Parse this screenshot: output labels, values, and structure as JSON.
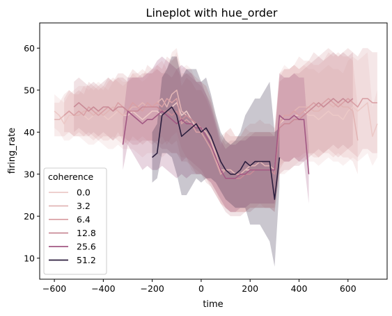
{
  "chart_data": {
    "type": "line",
    "title": "Lineplot with hue_order",
    "xlabel": "time",
    "ylabel": "firing_rate",
    "xlim": [
      -660,
      760
    ],
    "ylim": [
      5,
      66
    ],
    "xticks": [
      -600,
      -400,
      -200,
      0,
      200,
      400,
      600
    ],
    "yticks": [
      10,
      20,
      30,
      40,
      50,
      60
    ],
    "grid": false,
    "legend": {
      "title": "coherence",
      "placement": "lower-left"
    },
    "series": [
      {
        "name": "0.0",
        "color": "#ecc9c7",
        "x": [
          -600,
          -580,
          -560,
          -540,
          -520,
          -500,
          -480,
          -460,
          -440,
          -420,
          -400,
          -380,
          -360,
          -340,
          -320,
          -300,
          -280,
          -260,
          -240,
          -220,
          -200,
          -180,
          -160,
          -140,
          -120,
          -100,
          -80,
          -60,
          -40,
          -20,
          0,
          20,
          40,
          60,
          80,
          100,
          120,
          140,
          160,
          180,
          200,
          220,
          240,
          260,
          280,
          300,
          320,
          340,
          360,
          380,
          400,
          420,
          440,
          460,
          480,
          500,
          520,
          540,
          560,
          580,
          600,
          620,
          640,
          660,
          680,
          700,
          720
        ],
        "y": [
          45,
          44,
          42,
          44,
          44,
          45,
          44,
          43,
          44,
          45,
          44,
          43,
          44,
          45,
          44,
          44,
          45,
          44,
          43,
          44,
          45,
          45,
          44,
          45,
          46,
          47,
          44,
          45,
          43,
          41,
          41,
          40,
          38,
          34,
          30,
          31,
          31,
          30,
          30,
          31,
          31,
          31,
          31,
          31,
          31,
          31,
          42,
          43,
          43,
          44,
          44,
          45,
          44,
          44,
          43,
          44,
          45,
          44,
          44,
          43,
          45,
          46,
          45,
          46,
          47,
          39,
          42
        ],
        "lo": [
          41,
          40,
          38,
          38,
          39,
          39,
          38,
          37,
          37,
          38,
          37,
          36,
          36,
          37,
          36,
          36,
          36,
          35,
          34,
          35,
          35,
          35,
          34,
          35,
          35,
          35,
          34,
          34,
          31,
          30,
          30,
          29,
          28,
          26,
          24,
          22,
          21,
          21,
          21,
          21,
          22,
          22,
          22,
          22,
          22,
          22,
          30,
          30,
          31,
          32,
          33,
          34,
          33,
          33,
          32,
          33,
          34,
          33,
          33,
          32,
          33,
          34,
          33,
          34,
          35,
          32,
          34
        ],
        "hi": [
          49,
          48,
          47,
          49,
          50,
          51,
          51,
          50,
          51,
          52,
          51,
          50,
          52,
          53,
          52,
          52,
          54,
          53,
          52,
          53,
          55,
          55,
          54,
          55,
          57,
          59,
          55,
          56,
          55,
          52,
          52,
          51,
          48,
          42,
          36,
          40,
          41,
          39,
          39,
          41,
          40,
          40,
          40,
          40,
          40,
          40,
          54,
          56,
          55,
          56,
          55,
          56,
          55,
          55,
          54,
          55,
          56,
          55,
          55,
          54,
          57,
          58,
          57,
          58,
          59,
          46,
          50
        ]
      },
      {
        "name": "3.2",
        "color": "#e2b5b5",
        "x": [
          -600,
          -580,
          -560,
          -540,
          -520,
          -500,
          -480,
          -460,
          -440,
          -420,
          -400,
          -380,
          -360,
          -340,
          -320,
          -300,
          -280,
          -260,
          -240,
          -220,
          -200,
          -180,
          -160,
          -140,
          -120,
          -100,
          -80,
          -60,
          -40,
          -20,
          0,
          20,
          40,
          60,
          80,
          100,
          120,
          140,
          160,
          180,
          200,
          220,
          240,
          260,
          280,
          300,
          320,
          340,
          360,
          380,
          400,
          420,
          440,
          460,
          480,
          500,
          520,
          540,
          560,
          580,
          600,
          620,
          640
        ],
        "y": [
          43,
          43,
          44,
          45,
          44,
          44,
          45,
          45,
          44,
          45,
          44,
          45,
          46,
          45,
          44,
          45,
          46,
          46,
          47,
          46,
          46,
          47,
          48,
          46,
          49,
          50,
          45,
          44,
          43,
          42,
          41,
          40,
          38,
          35,
          31,
          31,
          31,
          30,
          30,
          31,
          32,
          32,
          33,
          32,
          32,
          31,
          43,
          44,
          44,
          45,
          46,
          46,
          46,
          45,
          45,
          46,
          47,
          46,
          47,
          46,
          46,
          45,
          38
        ],
        "lo": [
          39,
          39,
          39,
          40,
          39,
          39,
          39,
          39,
          38,
          39,
          38,
          38,
          39,
          38,
          37,
          38,
          38,
          38,
          39,
          38,
          38,
          38,
          39,
          37,
          39,
          40,
          36,
          34,
          32,
          31,
          30,
          29,
          28,
          26,
          23,
          22,
          21,
          21,
          21,
          21,
          22,
          22,
          23,
          22,
          22,
          21,
          32,
          33,
          33,
          34,
          34,
          35,
          35,
          34,
          34,
          35,
          35,
          34,
          35,
          34,
          34,
          33,
          30
        ],
        "hi": [
          47,
          47,
          49,
          50,
          49,
          49,
          51,
          51,
          50,
          51,
          50,
          52,
          53,
          52,
          51,
          52,
          54,
          54,
          55,
          54,
          54,
          56,
          57,
          55,
          59,
          60,
          54,
          54,
          54,
          53,
          52,
          51,
          48,
          44,
          39,
          40,
          41,
          39,
          39,
          41,
          42,
          42,
          43,
          42,
          42,
          41,
          54,
          55,
          55,
          56,
          58,
          57,
          57,
          56,
          56,
          57,
          59,
          58,
          59,
          58,
          58,
          57,
          46
        ]
      },
      {
        "name": "6.4",
        "color": "#d9a0a5",
        "x": [
          -560,
          -540,
          -520,
          -500,
          -480,
          -460,
          -440,
          -420,
          -400,
          -380,
          -360,
          -340,
          -320,
          -300,
          -280,
          -260,
          -240,
          -220,
          -200,
          -180,
          -160,
          -140,
          -120,
          -100,
          -80,
          -60,
          -40,
          -20,
          0,
          20,
          40,
          60,
          80,
          100,
          120,
          140,
          160,
          180,
          200,
          220,
          240,
          260,
          280,
          300,
          320,
          340,
          360,
          380,
          400,
          420,
          440,
          460,
          480,
          500,
          520,
          540,
          560,
          580,
          600,
          620,
          640,
          660,
          680,
          700,
          720
        ],
        "y": [
          44,
          45,
          44,
          45,
          44,
          46,
          45,
          44,
          45,
          46,
          45,
          47,
          46,
          45,
          47,
          46,
          45,
          47,
          46,
          47,
          46,
          48,
          47,
          48,
          42,
          43,
          42,
          40,
          40,
          38,
          36,
          33,
          30,
          31,
          30,
          30,
          30,
          30,
          31,
          31,
          31,
          31,
          31,
          31,
          42,
          44,
          44,
          45,
          44,
          45,
          46,
          47,
          46,
          47,
          48,
          47,
          46,
          47,
          48,
          47,
          46,
          48,
          48,
          47,
          47
        ],
        "lo": [
          40,
          40,
          39,
          40,
          39,
          40,
          39,
          38,
          39,
          39,
          38,
          40,
          38,
          37,
          39,
          38,
          37,
          38,
          37,
          38,
          37,
          38,
          37,
          38,
          33,
          33,
          32,
          30,
          30,
          28,
          27,
          25,
          23,
          22,
          21,
          21,
          21,
          21,
          22,
          22,
          22,
          22,
          22,
          22,
          31,
          33,
          33,
          34,
          33,
          34,
          35,
          35,
          34,
          35,
          36,
          35,
          34,
          35,
          36,
          35,
          34,
          36,
          36,
          35,
          35
        ],
        "hi": [
          48,
          50,
          49,
          50,
          49,
          52,
          51,
          50,
          51,
          53,
          52,
          54,
          54,
          53,
          55,
          54,
          53,
          56,
          55,
          56,
          55,
          58,
          57,
          58,
          51,
          53,
          52,
          50,
          50,
          48,
          45,
          41,
          37,
          40,
          39,
          39,
          39,
          39,
          40,
          40,
          40,
          40,
          40,
          40,
          53,
          55,
          55,
          56,
          55,
          56,
          57,
          59,
          58,
          59,
          60,
          59,
          58,
          59,
          60,
          59,
          58,
          60,
          60,
          59,
          59
        ]
      },
      {
        "name": "12.8",
        "color": "#c98a96",
        "x": [
          -520,
          -500,
          -480,
          -460,
          -440,
          -420,
          -400,
          -380,
          -360,
          -340,
          -320,
          -300,
          -280,
          -260,
          -240,
          -220,
          -200,
          -180,
          -160,
          -140,
          -120,
          -100,
          -80,
          -60,
          -40,
          -20,
          0,
          20,
          40,
          60,
          80,
          100,
          120,
          140,
          160,
          180,
          200,
          220,
          240,
          260,
          280,
          300,
          320,
          340,
          360,
          380,
          400,
          420,
          440,
          460,
          480,
          500,
          520,
          540,
          560,
          580,
          600,
          620
        ],
        "y": [
          46,
          47,
          46,
          45,
          46,
          45,
          46,
          46,
          45,
          46,
          46,
          45,
          45,
          45,
          46,
          46,
          46,
          46,
          45,
          45,
          44,
          45,
          43,
          44,
          43,
          42,
          41,
          39,
          37,
          34,
          31,
          29,
          29,
          29,
          29,
          30,
          30,
          31,
          31,
          31,
          31,
          30,
          41,
          42,
          42,
          43,
          43,
          44,
          45,
          46,
          47,
          46,
          47,
          48,
          47,
          48,
          47,
          48
        ],
        "lo": [
          40,
          41,
          40,
          39,
          40,
          39,
          40,
          39,
          38,
          39,
          39,
          38,
          37,
          37,
          38,
          38,
          38,
          37,
          36,
          36,
          35,
          35,
          33,
          34,
          33,
          32,
          31,
          29,
          27,
          25,
          23,
          21,
          20,
          20,
          20,
          21,
          21,
          22,
          22,
          22,
          22,
          21,
          30,
          31,
          31,
          32,
          32,
          33,
          34,
          35,
          36,
          35,
          36,
          37,
          36,
          37,
          36,
          37
        ],
        "hi": [
          52,
          53,
          52,
          51,
          52,
          51,
          52,
          53,
          52,
          53,
          53,
          52,
          53,
          53,
          54,
          54,
          54,
          55,
          54,
          54,
          53,
          55,
          53,
          54,
          53,
          52,
          51,
          49,
          47,
          43,
          39,
          37,
          38,
          38,
          38,
          39,
          39,
          40,
          40,
          40,
          40,
          39,
          52,
          53,
          53,
          54,
          54,
          55,
          56,
          57,
          58,
          57,
          58,
          59,
          58,
          59,
          58,
          59
        ]
      },
      {
        "name": "25.6",
        "color": "#a25883",
        "x": [
          -320,
          -300,
          -280,
          -260,
          -240,
          -220,
          -200,
          -180,
          -160,
          -140,
          -120,
          -100,
          -80,
          -60,
          -40,
          -20,
          0,
          20,
          40,
          60,
          80,
          100,
          120,
          140,
          160,
          180,
          200,
          220,
          240,
          260,
          280,
          300,
          320,
          340,
          360,
          380,
          400,
          420,
          440
        ],
        "y": [
          37,
          45,
          44,
          43,
          42,
          43,
          43,
          44,
          45,
          44,
          43,
          42,
          43,
          42,
          42,
          41,
          41,
          39,
          37,
          34,
          31,
          29,
          29,
          29,
          30,
          30,
          31,
          31,
          31,
          31,
          31,
          31,
          44,
          43,
          43,
          44,
          43,
          43,
          30
        ],
        "lo": [
          31,
          37,
          35,
          33,
          31,
          32,
          31,
          31,
          32,
          31,
          30,
          29,
          30,
          29,
          30,
          30,
          30,
          29,
          28,
          26,
          24,
          22,
          21,
          21,
          22,
          22,
          23,
          23,
          23,
          23,
          23,
          23,
          34,
          33,
          33,
          34,
          33,
          33,
          23
        ],
        "hi": [
          43,
          53,
          53,
          53,
          53,
          54,
          55,
          57,
          58,
          57,
          56,
          55,
          56,
          55,
          54,
          52,
          52,
          49,
          46,
          42,
          38,
          36,
          37,
          37,
          38,
          38,
          39,
          39,
          39,
          39,
          39,
          39,
          54,
          53,
          53,
          54,
          53,
          53,
          37
        ]
      },
      {
        "name": "51.2",
        "color": "#2b1e3e",
        "x": [
          -200,
          -180,
          -160,
          -140,
          -120,
          -100,
          -80,
          -60,
          -40,
          -20,
          0,
          20,
          40,
          60,
          80,
          100,
          120,
          140,
          160,
          180,
          200,
          220,
          240,
          260,
          280,
          300,
          320
        ],
        "y": [
          34,
          35,
          44,
          45,
          46,
          44,
          39,
          40,
          41,
          42,
          40,
          41,
          39,
          36,
          33,
          31,
          30,
          30,
          31,
          33,
          32,
          33,
          33,
          33,
          33,
          24,
          34
        ],
        "lo": [
          28,
          29,
          35,
          35,
          34,
          30,
          25,
          25,
          27,
          29,
          28,
          29,
          29,
          28,
          26,
          24,
          23,
          22,
          22,
          22,
          18,
          18,
          18,
          16,
          14,
          8,
          27
        ],
        "hi": [
          40,
          42,
          53,
          55,
          58,
          58,
          53,
          55,
          55,
          55,
          52,
          53,
          49,
          44,
          40,
          38,
          37,
          38,
          40,
          44,
          46,
          48,
          48,
          50,
          52,
          40,
          41
        ]
      }
    ]
  }
}
